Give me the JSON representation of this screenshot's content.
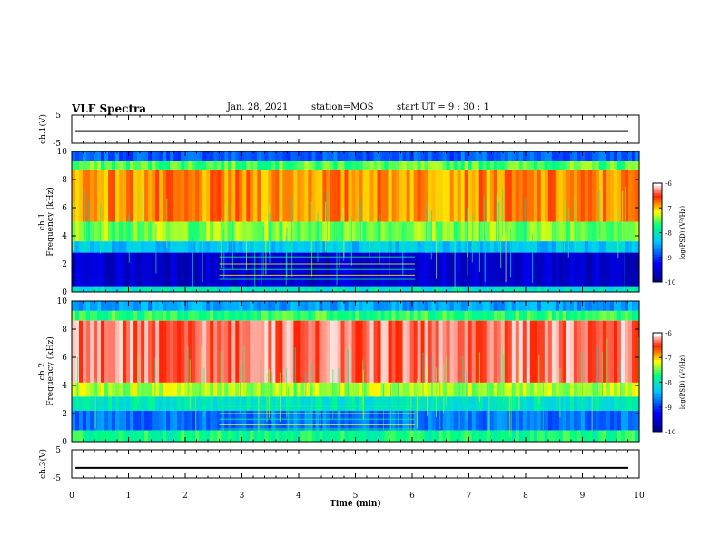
{
  "header": {
    "title": "VLF Spectra",
    "date": "Jan. 28, 2021",
    "station": "station=MOS",
    "start": "start UT = 9 : 30 : 1"
  },
  "chart_data": [
    {
      "type": "line",
      "name": "ch1-waveform",
      "ylabel": "ch.1(V)",
      "ylim": [
        -5,
        5
      ],
      "yticks": [
        "5",
        "-5"
      ],
      "x": [
        0,
        10
      ],
      "values": [
        -0.7,
        -0.7
      ]
    },
    {
      "type": "heatmap",
      "name": "ch1-spectrogram",
      "ylabel_line1": "ch.1",
      "ylabel_line2": "Frequency (kHz)",
      "ylim": [
        0,
        10
      ],
      "yticks": [
        "0",
        "2",
        "4",
        "6",
        "8",
        "10"
      ],
      "xlim": [
        0,
        10
      ],
      "bands": [
        {
          "f0": 9.3,
          "f1": 10,
          "level": -8.8
        },
        {
          "f0": 8.7,
          "f1": 9.3,
          "level": -7.5
        },
        {
          "f0": 5.0,
          "f1": 8.7,
          "level": -6.8
        },
        {
          "f0": 3.6,
          "f1": 5.0,
          "level": -7.4
        },
        {
          "f0": 2.8,
          "f1": 3.6,
          "level": -8.3
        },
        {
          "f0": 0.4,
          "f1": 2.8,
          "level": -9.5
        },
        {
          "f0": 0.0,
          "f1": 0.4,
          "level": -8.0
        }
      ],
      "colorbar": {
        "min": -10,
        "max": -6,
        "ticks": [
          "-6",
          "-7",
          "-8",
          "-9",
          "-10"
        ],
        "label": "log(PSD) (V²/Hz)"
      }
    },
    {
      "type": "heatmap",
      "name": "ch2-spectrogram",
      "ylabel_line1": "ch.2",
      "ylabel_line2": "Frequency (kHz)",
      "ylim": [
        0,
        10
      ],
      "yticks": [
        "0",
        "2",
        "4",
        "6",
        "8",
        "10"
      ],
      "xlim": [
        0,
        10
      ],
      "bands": [
        {
          "f0": 9.3,
          "f1": 10,
          "level": -8.5
        },
        {
          "f0": 8.6,
          "f1": 9.3,
          "level": -7.6
        },
        {
          "f0": 4.2,
          "f1": 8.6,
          "level": -6.3
        },
        {
          "f0": 3.2,
          "f1": 4.2,
          "level": -7.3
        },
        {
          "f0": 2.2,
          "f1": 3.2,
          "level": -8.0
        },
        {
          "f0": 0.8,
          "f1": 2.2,
          "level": -8.7
        },
        {
          "f0": 0.0,
          "f1": 0.8,
          "level": -7.7
        }
      ],
      "colorbar": {
        "min": -10,
        "max": -6,
        "ticks": [
          "-6",
          "-7",
          "-8",
          "-9",
          "-10"
        ],
        "label": "log(PSD) (V²/Hz)"
      }
    },
    {
      "type": "line",
      "name": "ch3-waveform",
      "ylabel": "ch.3(V)",
      "ylim": [
        -5,
        5
      ],
      "yticks": [
        "5",
        "-5"
      ],
      "x": [
        0,
        10
      ],
      "values": [
        -1.4,
        -1.4
      ]
    }
  ],
  "xaxis": {
    "label": "Time (min)",
    "ticks": [
      "0",
      "1",
      "2",
      "3",
      "4",
      "5",
      "6",
      "7",
      "8",
      "9",
      "10"
    ]
  },
  "colors": {
    "colormap": [
      "#000080",
      "#0000ff",
      "#00c8ff",
      "#00ff80",
      "#ffff00",
      "#ff2000",
      "#ffffff"
    ]
  }
}
